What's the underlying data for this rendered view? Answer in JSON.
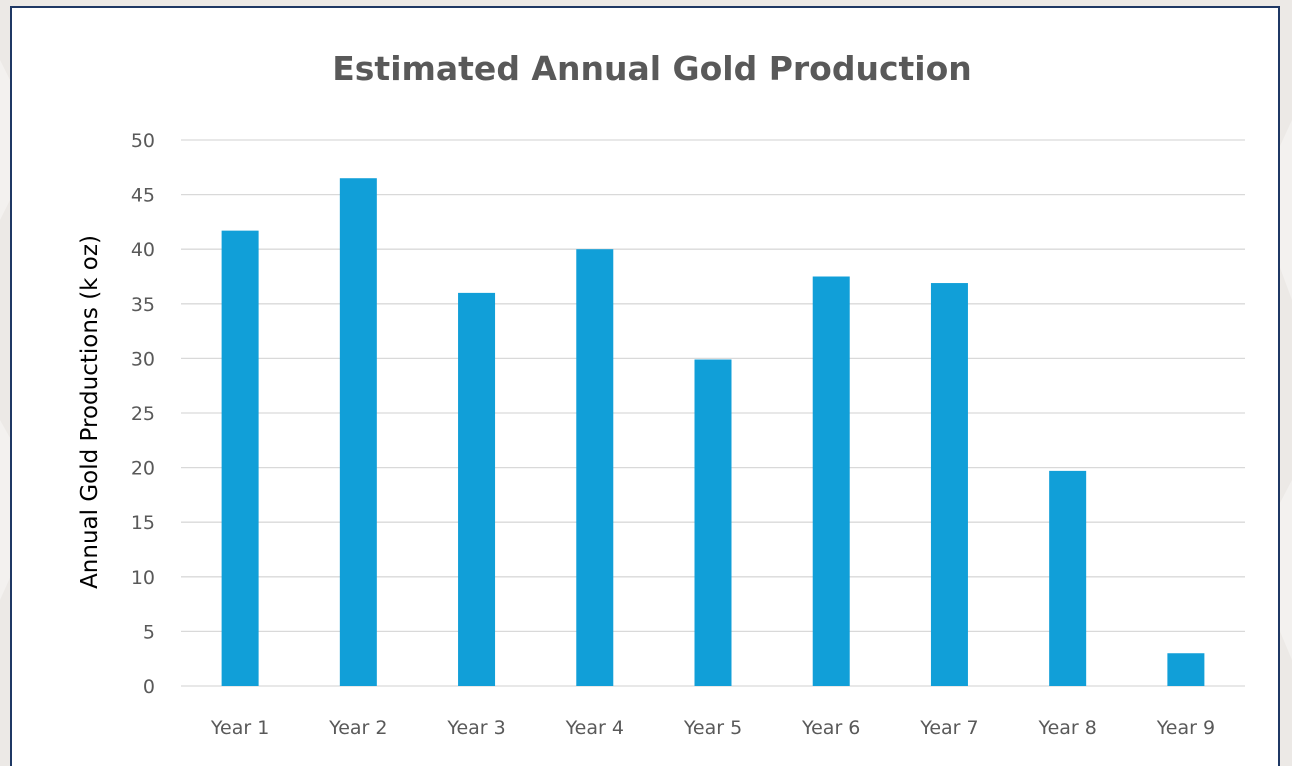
{
  "chart_data": {
    "type": "bar",
    "title": "Estimated Annual Gold Production",
    "xlabel": "",
    "ylabel": "Annual Gold Productions (k oz)",
    "categories": [
      "Year 1",
      "Year 2",
      "Year 3",
      "Year 4",
      "Year 5",
      "Year 6",
      "Year 7",
      "Year 8",
      "Year 9"
    ],
    "values": [
      41.7,
      46.5,
      36.0,
      40.0,
      29.9,
      37.5,
      36.9,
      19.7,
      3.0
    ],
    "ylim": [
      0,
      50
    ],
    "yticks": [
      "0",
      "5",
      "10",
      "15",
      "20",
      "25",
      "30",
      "35",
      "40",
      "45",
      "50"
    ],
    "grid": true,
    "legend": "none",
    "colors": {
      "bar": "#119fd8",
      "gridline": "#d9d9d9",
      "frame": "#1f3864",
      "text": "#595959"
    }
  }
}
